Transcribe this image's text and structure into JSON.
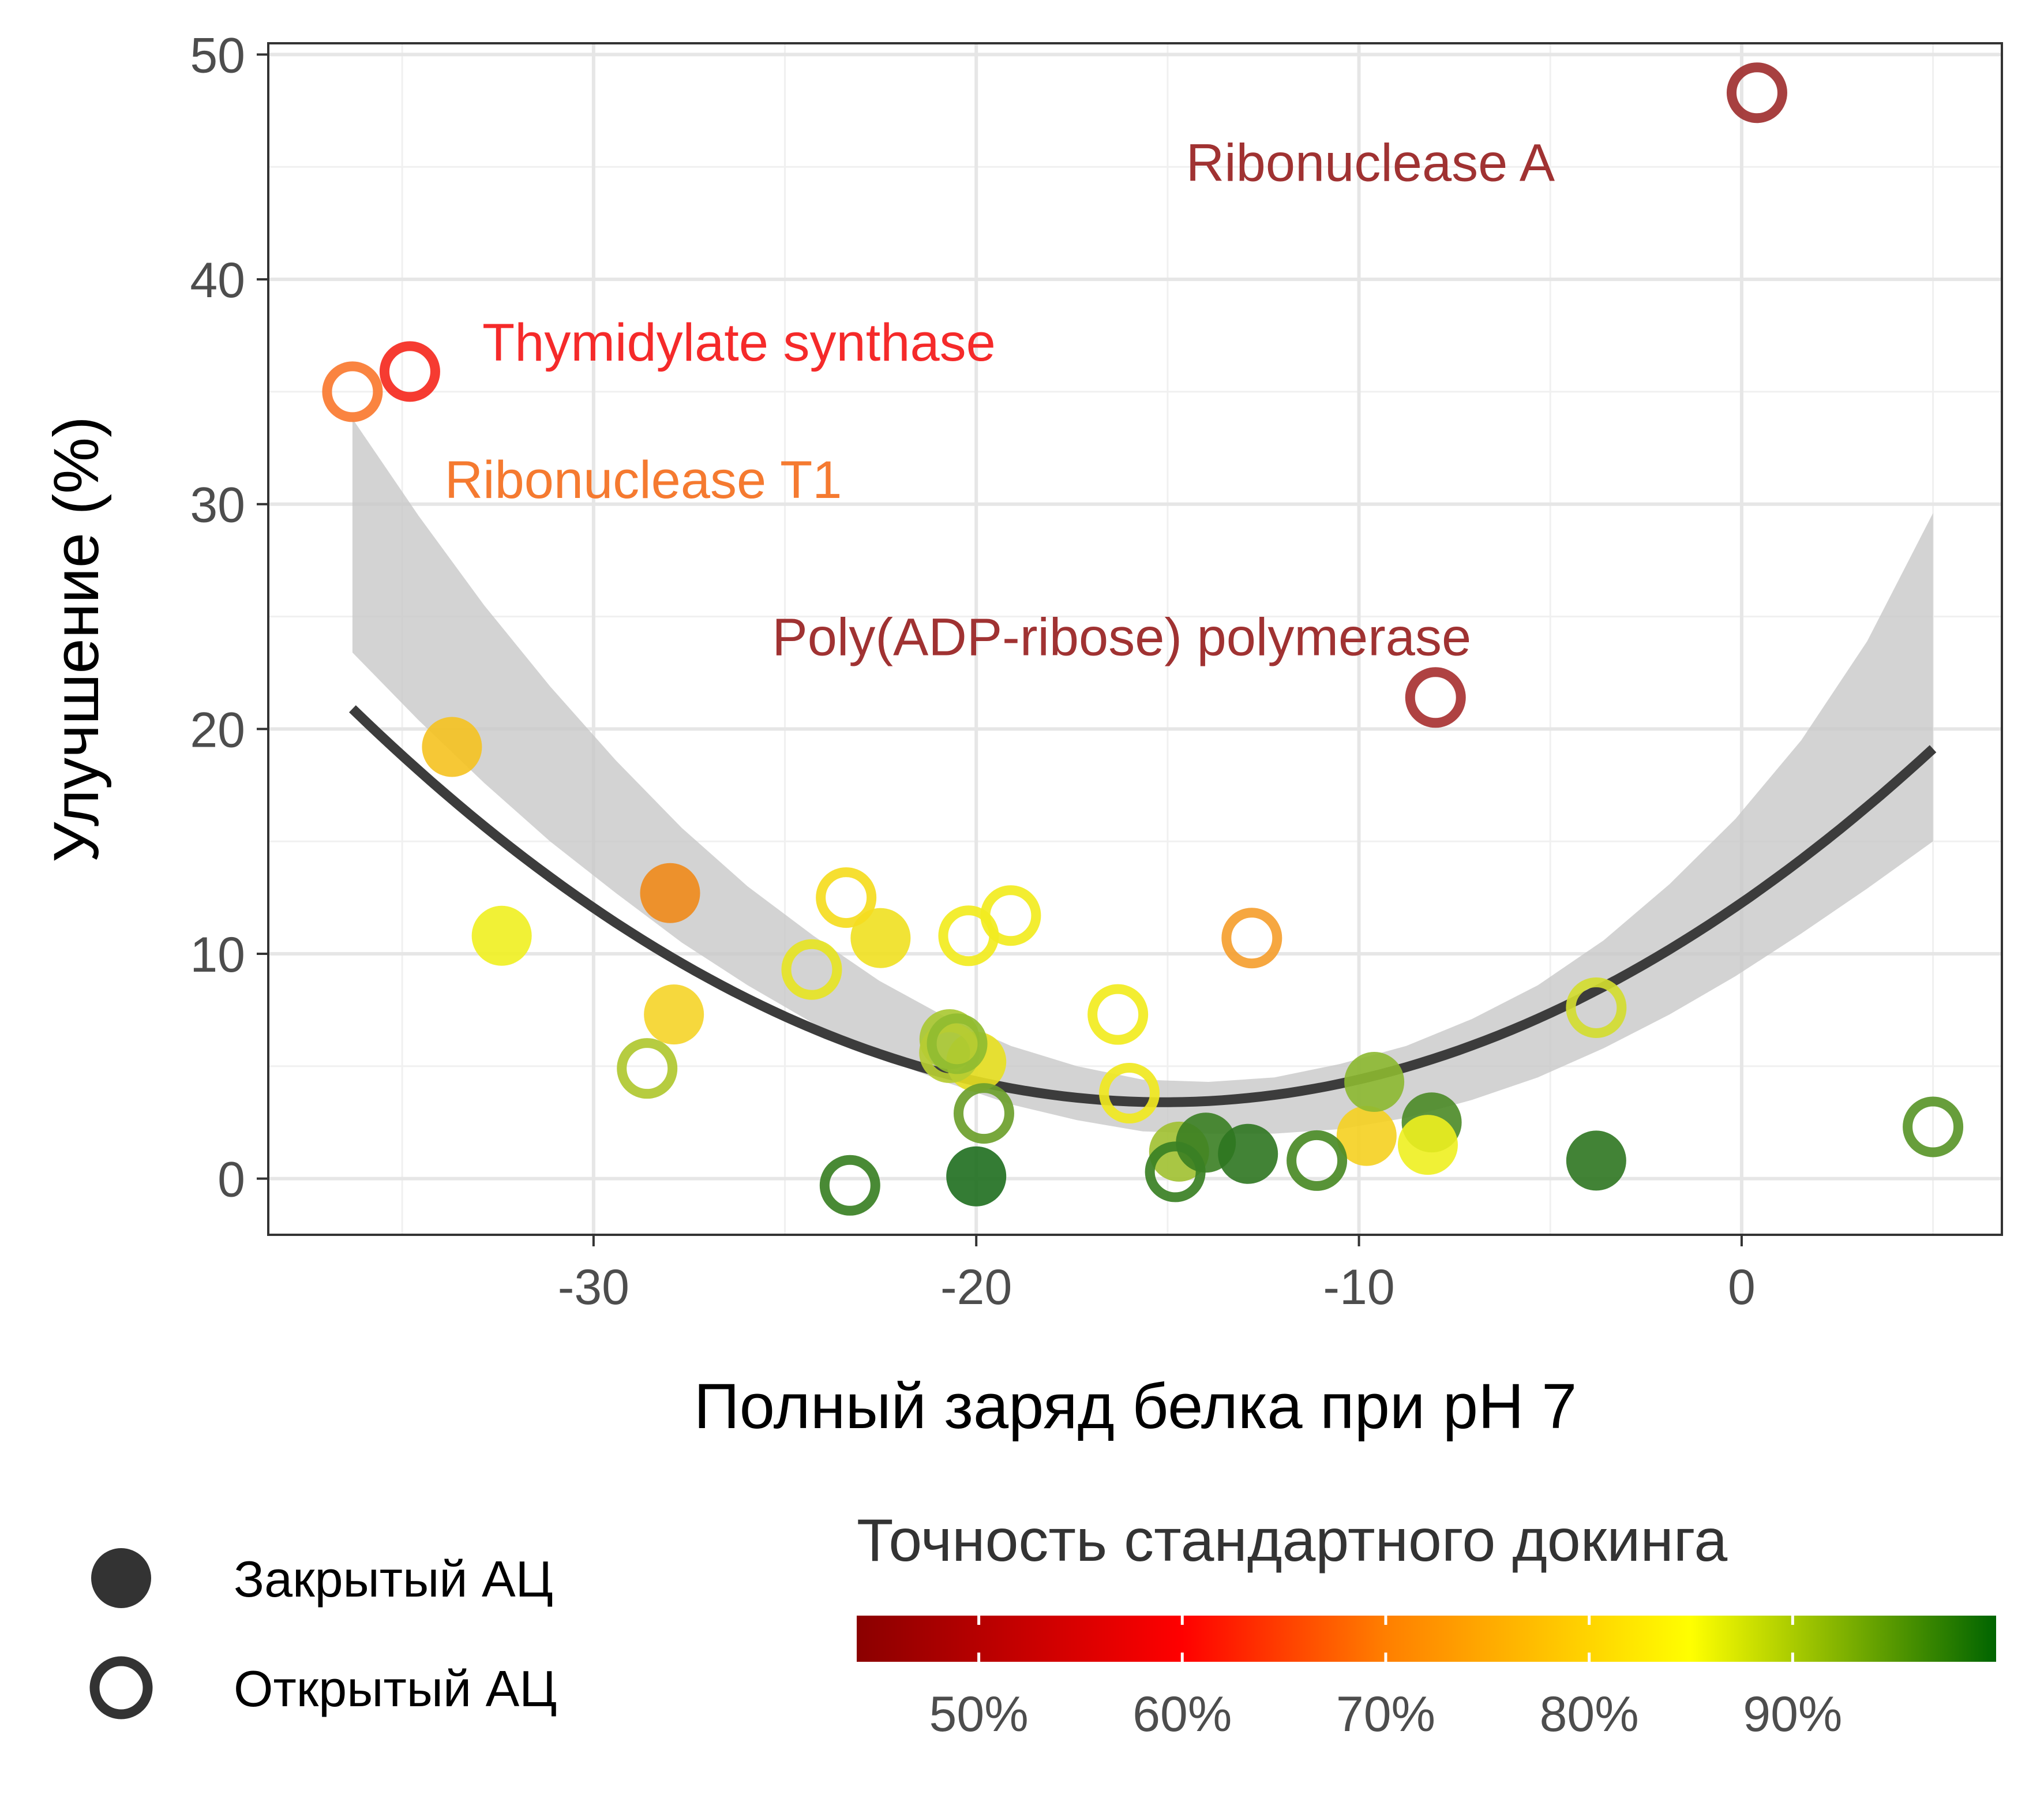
{
  "chart_data": {
    "type": "scatter",
    "xlabel": "Полный заряд белка при pH 7",
    "ylabel": "Улучшение (%)",
    "xlim": [
      -38.5,
      6.8
    ],
    "ylim": [
      -2.5,
      50.5
    ],
    "xticks": [
      -30,
      -20,
      -10,
      0
    ],
    "xtick_labels": [
      "-30",
      "-20",
      "-10",
      "0"
    ],
    "yticks": [
      0,
      10,
      20,
      30,
      40,
      50
    ],
    "ytick_labels": [
      "0",
      "10",
      "20",
      "30",
      "40",
      "50"
    ],
    "x_minor": [
      -35,
      -25,
      -15,
      -5,
      5
    ],
    "y_minor": [
      5,
      15,
      25,
      35,
      45
    ],
    "grid": true,
    "points": [
      {
        "x": -33.7,
        "y": 19.2,
        "filled": true,
        "color": "#F5C220"
      },
      {
        "x": -32.4,
        "y": 10.8,
        "filled": true,
        "color": "#F0F020"
      },
      {
        "x": -28.0,
        "y": 12.7,
        "filled": true,
        "color": "#F08A1A"
      },
      {
        "x": -27.9,
        "y": 7.3,
        "filled": true,
        "color": "#F5D428"
      },
      {
        "x": -22.5,
        "y": 10.7,
        "filled": true,
        "color": "#F0E020"
      },
      {
        "x": -20.0,
        "y": 5.2,
        "filled": true,
        "color": "#E8E020"
      },
      {
        "x": -20.0,
        "y": 0.1,
        "filled": true,
        "color": "#1E6E1E"
      },
      {
        "x": -20.7,
        "y": 6.2,
        "filled": true,
        "color": "#A8C830"
      },
      {
        "x": -14.7,
        "y": 1.2,
        "filled": true,
        "color": "#A0C030"
      },
      {
        "x": -14.0,
        "y": 1.6,
        "filled": true,
        "color": "#3A7E22"
      },
      {
        "x": -12.9,
        "y": 1.1,
        "filled": true,
        "color": "#2E7620"
      },
      {
        "x": -9.8,
        "y": 1.9,
        "filled": true,
        "color": "#F5D020"
      },
      {
        "x": -9.6,
        "y": 4.3,
        "filled": true,
        "color": "#8CB830"
      },
      {
        "x": -8.1,
        "y": 2.5,
        "filled": true,
        "color": "#4A8A26"
      },
      {
        "x": -8.2,
        "y": 1.5,
        "filled": true,
        "color": "#EEF020"
      },
      {
        "x": -3.8,
        "y": 0.8,
        "filled": true,
        "color": "#2E7620"
      },
      {
        "x": -36.3,
        "y": 35.0,
        "filled": false,
        "color": "#FA7A30"
      },
      {
        "x": -34.8,
        "y": 35.9,
        "filled": false,
        "color": "#F52A20"
      },
      {
        "x": -28.6,
        "y": 4.9,
        "filled": false,
        "color": "#B0C830"
      },
      {
        "x": -24.3,
        "y": 9.3,
        "filled": false,
        "color": "#E6E424"
      },
      {
        "x": -23.4,
        "y": 12.5,
        "filled": false,
        "color": "#F5DC20"
      },
      {
        "x": -20.2,
        "y": 10.8,
        "filled": false,
        "color": "#F2EC20"
      },
      {
        "x": -19.1,
        "y": 11.7,
        "filled": false,
        "color": "#F2EC20"
      },
      {
        "x": -20.7,
        "y": 5.6,
        "filled": false,
        "color": "#B6CC32"
      },
      {
        "x": -20.5,
        "y": 6.0,
        "filled": false,
        "color": "#90BC30"
      },
      {
        "x": -19.8,
        "y": 2.9,
        "filled": false,
        "color": "#6CA02C"
      },
      {
        "x": -23.3,
        "y": -0.3,
        "filled": false,
        "color": "#3A8024"
      },
      {
        "x": -16.3,
        "y": 7.3,
        "filled": false,
        "color": "#F2EC20"
      },
      {
        "x": -16.0,
        "y": 3.8,
        "filled": false,
        "color": "#F0E820"
      },
      {
        "x": -12.8,
        "y": 10.7,
        "filled": false,
        "color": "#F5A030"
      },
      {
        "x": -14.8,
        "y": 0.3,
        "filled": false,
        "color": "#3A8024"
      },
      {
        "x": -11.1,
        "y": 0.8,
        "filled": false,
        "color": "#4A8A26"
      },
      {
        "x": -8.0,
        "y": 21.4,
        "filled": false,
        "color": "#A83232"
      },
      {
        "x": -3.8,
        "y": 7.6,
        "filled": false,
        "color": "#D2DC30"
      },
      {
        "x": 0.4,
        "y": 48.3,
        "filled": false,
        "color": "#A03030"
      },
      {
        "x": 5.0,
        "y": 2.3,
        "filled": false,
        "color": "#5A962A"
      }
    ],
    "fit": {
      "type": "quadratic",
      "a": 0.03893,
      "b": 1.1755,
      "c": 12.27,
      "x_range": [
        -36.3,
        5.0
      ],
      "ci_lower": [
        23.4,
        20.4,
        17.6,
        15.0,
        12.7,
        10.5,
        8.6,
        6.9,
        5.4,
        4.3,
        3.3,
        2.6,
        2.1,
        2.0,
        2.0,
        2.2,
        2.7,
        3.5,
        4.5,
        5.8,
        7.3,
        9.0,
        10.9,
        12.9,
        15.0
      ],
      "ci_upper": [
        33.8,
        29.5,
        25.5,
        21.9,
        18.6,
        15.6,
        13.0,
        10.8,
        8.8,
        7.2,
        5.9,
        5.0,
        4.4,
        4.3,
        4.5,
        5.1,
        5.9,
        7.1,
        8.6,
        10.6,
        13.1,
        16.0,
        19.5,
        23.9,
        29.6
      ],
      "line_color": "#3c3c3c",
      "band_color": "#c8c8c8"
    },
    "annotations": [
      {
        "text": "Ribonuclease A",
        "x": -9.7,
        "y": 45.2,
        "color": "#A03232"
      },
      {
        "text": "Thymidylate synthase",
        "x": -26.2,
        "y": 37.2,
        "color": "#F52A2A"
      },
      {
        "text": "Ribonuclease T1",
        "x": -28.7,
        "y": 31.1,
        "color": "#F57A30"
      },
      {
        "text": "Poly(ADP-ribose) polymerase",
        "x": -16.2,
        "y": 24.1,
        "color": "#A03232"
      }
    ],
    "legend_shape": {
      "items": [
        {
          "label": "Закрытый АЦ",
          "filled": true
        },
        {
          "label": "Открытый АЦ",
          "filled": false
        }
      ],
      "color": "#333333"
    },
    "colorbar": {
      "title": "Точность стандартного докинга",
      "range": [
        0.44,
        1.0
      ],
      "ticks": [
        0.5,
        0.6,
        0.7,
        0.8,
        0.9
      ],
      "tick_labels": [
        "50%",
        "60%",
        "70%",
        "80%",
        "90%"
      ],
      "stops": [
        {
          "value": 0.44,
          "color": "#8B0000"
        },
        {
          "value": 0.6,
          "color": "#FF0000"
        },
        {
          "value": 0.7,
          "color": "#FF7F00"
        },
        {
          "value": 0.85,
          "color": "#FFFF00"
        },
        {
          "value": 1.0,
          "color": "#006400"
        }
      ]
    }
  }
}
